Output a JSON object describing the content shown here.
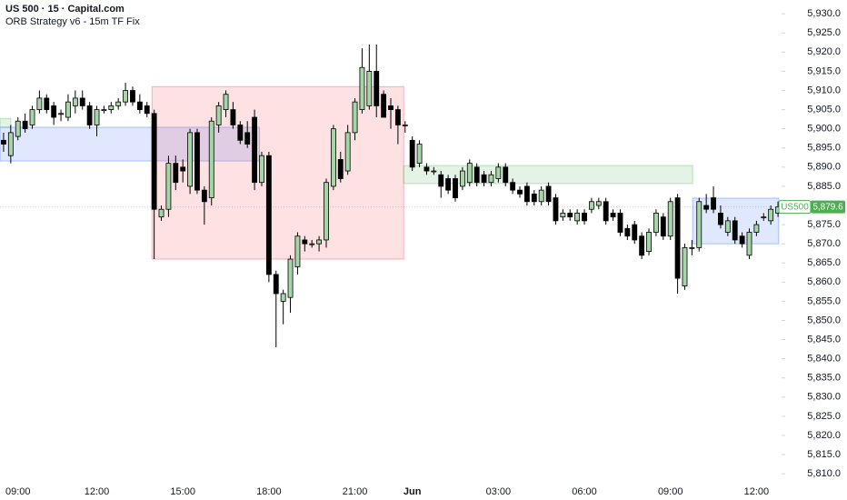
{
  "chart_data": {
    "type": "candlestick",
    "title": "US 500 · 15 · Capital.com",
    "subtitle": "ORB Strategy v6 - 15m TF Fix",
    "categories": [
      null,
      null,
      "09:00",
      null,
      null,
      null,
      null,
      null,
      null,
      null,
      null,
      null,
      null,
      "12:00",
      null,
      null,
      null,
      null,
      null,
      null,
      null,
      null,
      null,
      null,
      null,
      "15:00",
      null,
      null,
      null,
      null,
      null,
      null,
      null,
      null,
      null,
      null,
      null,
      "18:00",
      null,
      null,
      null,
      null,
      null,
      null,
      null,
      null,
      null,
      null,
      null,
      "21:00",
      null,
      null,
      null,
      null,
      null,
      null,
      null,
      "Jun",
      null,
      null,
      null,
      null,
      null,
      null,
      null,
      null,
      null,
      null,
      null,
      "03:00",
      null,
      null,
      null,
      null,
      null,
      null,
      null,
      null,
      null,
      null,
      null,
      "06:00",
      null,
      null,
      null,
      null,
      null,
      null,
      null,
      null,
      null,
      null,
      null,
      "09:00",
      null,
      null,
      null,
      null,
      null,
      null,
      null,
      null,
      null,
      null,
      null,
      "12:00",
      null,
      null,
      null
    ],
    "open": [
      5897,
      5893,
      5898,
      5902,
      5901,
      5905,
      5908,
      5906,
      5904,
      5903,
      5906,
      5908,
      5906,
      5901,
      5905,
      5905,
      5906,
      5907,
      5910,
      5907,
      5906,
      5904,
      5877,
      5879,
      5891,
      5890,
      5885,
      5899,
      5884,
      5882,
      5901,
      5905,
      5905,
      5901,
      5899,
      5903,
      5886,
      5893,
      5862,
      5855,
      5856,
      5864,
      5871,
      5870,
      5870,
      5871,
      5885,
      5892,
      5889,
      5899,
      5905,
      5906,
      5915,
      5909,
      5906,
      5905,
      5901,
      5897,
      5891,
      5890,
      5889,
      5888,
      5887,
      5887,
      5885,
      5886,
      5890,
      5888,
      5886,
      5887,
      5890,
      5886,
      5884,
      5885,
      5883,
      5881,
      5885,
      5882,
      5877,
      5878,
      5876,
      5878,
      5879,
      5880,
      5881,
      5878,
      5878,
      5874,
      5875,
      5872,
      5868,
      5873,
      5877,
      5872,
      5882,
      5859,
      5869,
      5869,
      5880,
      5882,
      5878,
      5873,
      5876,
      5872,
      5867,
      5873,
      5877,
      5876,
      5878
    ],
    "high": [
      5899,
      5901,
      5903,
      5904,
      5906,
      5910,
      5909,
      5907,
      5905,
      5909,
      5910,
      5910,
      5907,
      5906,
      5906,
      5907,
      5908,
      5912,
      5911,
      5909,
      5907,
      5905,
      5880,
      5893,
      5893,
      5892,
      5900,
      5900,
      5885,
      5903,
      5907,
      5910,
      5907,
      5902,
      5902,
      5905,
      5894,
      5894,
      5863,
      5858,
      5867,
      5873,
      5872,
      5871,
      5872,
      5887,
      5901,
      5894,
      5901,
      5908,
      5921,
      5922,
      5922,
      5910,
      5908,
      5906,
      5902,
      5898,
      5897,
      5891,
      5890,
      5889,
      5888,
      5888,
      5890,
      5892,
      5891,
      5889,
      5889,
      5891,
      5891,
      5887,
      5885,
      5886,
      5884,
      5885,
      5886,
      5883,
      5879,
      5879,
      5879,
      5879,
      5882,
      5882,
      5882,
      5879,
      5879,
      5875,
      5876,
      5873,
      5874,
      5879,
      5878,
      5882,
      5883,
      5870,
      5871,
      5882,
      5883,
      5885,
      5880,
      5877,
      5877,
      5873,
      5874,
      5876,
      5878,
      5880,
      5881
    ],
    "low": [
      5894,
      5891,
      5897,
      5899,
      5900,
      5904,
      5904,
      5901,
      5902,
      5902,
      5904,
      5905,
      5900,
      5898,
      5904,
      5904,
      5905,
      5906,
      5906,
      5904,
      5903,
      5866,
      5876,
      5877,
      5884,
      5886,
      5883,
      5883,
      5875,
      5880,
      5899,
      5903,
      5900,
      5896,
      5895,
      5884,
      5885,
      5860,
      5843,
      5849,
      5852,
      5862,
      5868,
      5869,
      5868,
      5869,
      5884,
      5886,
      5888,
      5897,
      5904,
      5905,
      5903,
      5903,
      5900,
      5896,
      5899,
      5889,
      5890,
      5888,
      5888,
      5882,
      5883,
      5881,
      5884,
      5885,
      5885,
      5885,
      5885,
      5886,
      5885,
      5883,
      5882,
      5880,
      5880,
      5880,
      5880,
      5875,
      5876,
      5876,
      5875,
      5875,
      5878,
      5879,
      5875,
      5876,
      5872,
      5871,
      5870,
      5866,
      5867,
      5872,
      5871,
      5871,
      5857,
      5858,
      5867,
      5868,
      5878,
      5878,
      5874,
      5872,
      5870,
      5869,
      5866,
      5872,
      5876,
      5875,
      5877
    ],
    "close": [
      5896,
      5899,
      5902,
      5900,
      5905,
      5908,
      5905,
      5903,
      5904,
      5907,
      5908,
      5906,
      5901,
      5905,
      5905,
      5906,
      5907,
      5910,
      5907,
      5905,
      5904,
      5879,
      5879,
      5891,
      5886,
      5889,
      5899,
      5884,
      5881,
      5902,
      5906,
      5909,
      5901,
      5897,
      5896,
      5886,
      5893,
      5862,
      5857,
      5857,
      5866,
      5872,
      5870,
      5870,
      5871,
      5886,
      5900,
      5887,
      5899,
      5907,
      5916,
      5915,
      5906,
      5903,
      5905,
      5901,
      5901,
      5890,
      5896,
      5889,
      5889,
      5885,
      5884,
      5882,
      5889,
      5891,
      5886,
      5886,
      5888,
      5890,
      5886,
      5884,
      5883,
      5881,
      5881,
      5884,
      5881,
      5876,
      5878,
      5877,
      5878,
      5876,
      5881,
      5881,
      5876,
      5877,
      5873,
      5872,
      5871,
      5867,
      5873,
      5878,
      5872,
      5881,
      5861,
      5869,
      5869,
      5881,
      5879,
      5879,
      5875,
      5876,
      5871,
      5870,
      5873,
      5875,
      5877,
      5879,
      5879.6
    ],
    "up_color": "#a5d6a7",
    "down_color": "#000000",
    "zones": [
      {
        "start": -0.5,
        "end": 1.0,
        "top": 5902.7,
        "bottom": 5900.4,
        "color": "#4caf50"
      },
      {
        "start": -0.5,
        "end": 35.7,
        "top": 5900.4,
        "bottom": 5891.6,
        "color": "#2962ff"
      },
      {
        "start": 20.7,
        "end": 55.8,
        "top": 5911,
        "bottom": 5866,
        "color": "#f23645"
      },
      {
        "start": 55.8,
        "end": 96.1,
        "top": 5890.4,
        "bottom": 5885.7,
        "color": "#4caf50"
      },
      {
        "start": 96.1,
        "end": 108.1,
        "top": 5881.9,
        "bottom": 5870,
        "color": "#2962ff"
      }
    ],
    "last_price": {
      "name": "US500",
      "value": 5879.6,
      "value_label": "5,879.6",
      "color": "#4caf50"
    },
    "ylim": [
      5807.9,
      5933.6
    ],
    "yticks": [
      {
        "value": 5810,
        "label": "5,810.0"
      },
      {
        "value": 5815,
        "label": "5,815.0"
      },
      {
        "value": 5820,
        "label": "5,820.0"
      },
      {
        "value": 5825,
        "label": "5,825.0"
      },
      {
        "value": 5830,
        "label": "5,830.0"
      },
      {
        "value": 5835,
        "label": "5,835.0"
      },
      {
        "value": 5840,
        "label": "5,840.0"
      },
      {
        "value": 5845,
        "label": "5,845.0"
      },
      {
        "value": 5850,
        "label": "5,850.0"
      },
      {
        "value": 5855,
        "label": "5,855.0"
      },
      {
        "value": 5860,
        "label": "5,860.0"
      },
      {
        "value": 5865,
        "label": "5,865.0"
      },
      {
        "value": 5870,
        "label": "5,870.0"
      },
      {
        "value": 5875,
        "label": "5,875.0"
      },
      {
        "value": 5880,
        "label": "5,880.0"
      },
      {
        "value": 5885,
        "label": "5,885.0"
      },
      {
        "value": 5890,
        "label": "5,890.0"
      },
      {
        "value": 5895,
        "label": "5,895.0"
      },
      {
        "value": 5900,
        "label": "5,900.0"
      },
      {
        "value": 5905,
        "label": "5,905.0"
      },
      {
        "value": 5910,
        "label": "5,910.0"
      },
      {
        "value": 5915,
        "label": "5,915.0"
      },
      {
        "value": 5920,
        "label": "5,920.0"
      },
      {
        "value": 5925,
        "label": "5,925.0"
      },
      {
        "value": 5930,
        "label": "5,930.0"
      }
    ],
    "grid": false
  }
}
